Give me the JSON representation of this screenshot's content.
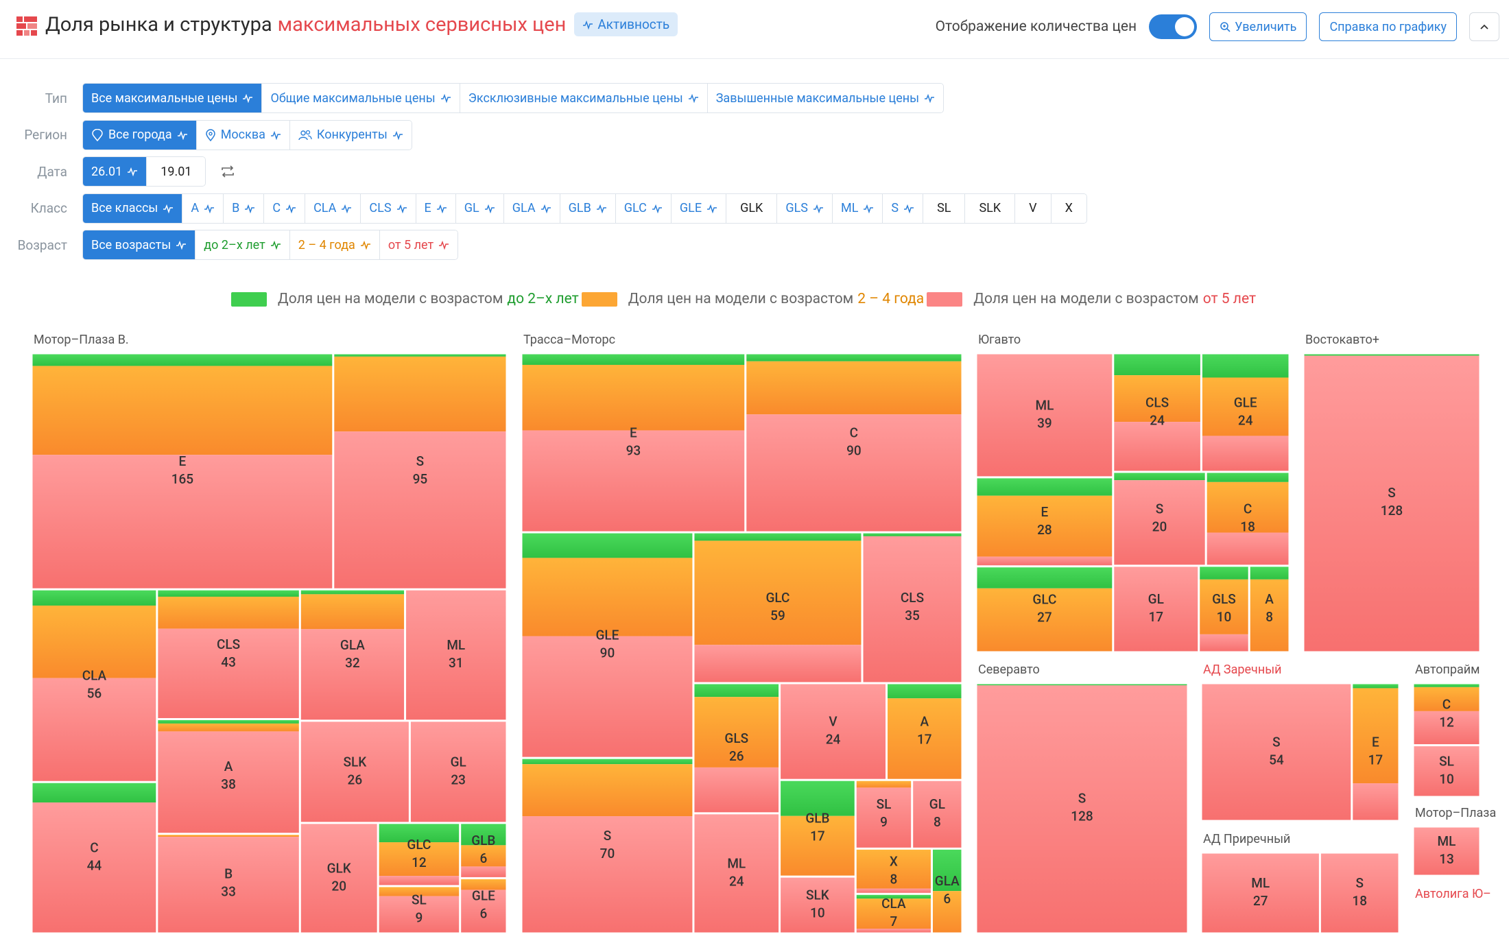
{
  "header": {
    "title": "Доля рынка и структура",
    "title_highlight": "максимальных сервисных цен",
    "badge": "Активность",
    "toggle_label": "Отображение количества цен",
    "toggle_on": true,
    "buttons": [
      "Увеличить",
      "Справка по графику"
    ]
  },
  "filters": [
    {
      "label": "Тип",
      "options": [
        {
          "text": "Все максимальные цены",
          "active": true,
          "pulse": true
        },
        {
          "text": "Общие максимальные цены",
          "pulse": true
        },
        {
          "text": "Эксклюзивные максимальные цены",
          "pulse": true
        },
        {
          "text": "Завышенные максимальные цены",
          "pulse": true
        }
      ]
    },
    {
      "label": "Регион",
      "options": [
        {
          "text": "Все города",
          "active": true,
          "pulse": true,
          "icon": "pin-heart"
        },
        {
          "text": "Москва",
          "pulse": true,
          "icon": "pin"
        },
        {
          "text": "Конкуренты",
          "pulse": true,
          "icon": "users"
        }
      ]
    },
    {
      "label": "Дата",
      "swap": true,
      "options": [
        {
          "text": "26.01",
          "active": true,
          "pulse": true
        },
        {
          "text": "19.01"
        }
      ]
    },
    {
      "label": "Класс",
      "options": [
        {
          "text": "Все классы",
          "active": true,
          "pulse": true
        },
        {
          "text": "A",
          "pulse": true
        },
        {
          "text": "B",
          "pulse": true
        },
        {
          "text": "C",
          "pulse": true
        },
        {
          "text": "CLA",
          "pulse": true
        },
        {
          "text": "CLS",
          "pulse": true
        },
        {
          "text": "E",
          "pulse": true
        },
        {
          "text": "GL",
          "pulse": true
        },
        {
          "text": "GLA",
          "pulse": true
        },
        {
          "text": "GLB",
          "pulse": true
        },
        {
          "text": "GLC",
          "pulse": true
        },
        {
          "text": "GLE",
          "pulse": true
        },
        {
          "text": "GLK"
        },
        {
          "text": "GLS",
          "pulse": true
        },
        {
          "text": "ML",
          "pulse": true
        },
        {
          "text": "S",
          "pulse": true
        },
        {
          "text": "SL"
        },
        {
          "text": "SLK"
        },
        {
          "text": "V"
        },
        {
          "text": "X"
        }
      ]
    },
    {
      "label": "Возраст",
      "options": [
        {
          "text": "Все возрасты",
          "active": true,
          "pulse": true
        },
        {
          "text": "до 2–х лет",
          "pulse": true,
          "color": "#1f9d2f"
        },
        {
          "text": "2 – 4 года",
          "pulse": true,
          "color": "#e08600"
        },
        {
          "text": "от 5 лет",
          "pulse": true,
          "color": "#e5484d"
        }
      ]
    }
  ],
  "legend": [
    {
      "prefix": "Доля цен на модели с возрастом",
      "age": "до 2–х лет",
      "color": "#3fce4f",
      "text_color": "#1f9d2f"
    },
    {
      "prefix": "Доля цен на модели с возрастом",
      "age": "2 – 4 года",
      "color": "#fca634",
      "text_color": "#e08600"
    },
    {
      "prefix": "Доля цен на модели с возрастом",
      "age": "от 5 лет",
      "color": "#fb8585",
      "text_color": "#e5484d"
    }
  ],
  "chart_data": {
    "type": "treemap",
    "groups": [
      {
        "name": "Мотор–Плаза В.",
        "items": [
          {
            "label": "E",
            "value": 165,
            "shares": [
              5,
              38,
              57
            ]
          },
          {
            "label": "S",
            "value": 95,
            "shares": [
              1,
              32,
              67
            ]
          },
          {
            "label": "CLA",
            "value": 56,
            "shares": [
              8,
              38,
              54
            ]
          },
          {
            "label": "C",
            "value": 44,
            "shares": [
              13,
              0,
              87
            ]
          },
          {
            "label": "CLS",
            "value": 43,
            "shares": [
              5,
              25,
              70
            ]
          },
          {
            "label": "A",
            "value": 38,
            "shares": [
              3,
              7,
              90
            ]
          },
          {
            "label": "B",
            "value": 33,
            "shares": [
              0,
              2,
              98
            ]
          },
          {
            "label": "GLA",
            "value": 32,
            "shares": [
              3,
              27,
              70
            ]
          },
          {
            "label": "ML",
            "value": 31,
            "shares": [
              0,
              0,
              100
            ]
          },
          {
            "label": "SLK",
            "value": 26,
            "shares": [
              0,
              0,
              100
            ]
          },
          {
            "label": "GL",
            "value": 23,
            "shares": [
              0,
              0,
              100
            ]
          },
          {
            "label": "GLK",
            "value": 20,
            "shares": [
              0,
              0,
              100
            ]
          },
          {
            "label": "GLC",
            "value": 12,
            "shares": [
              30,
              55,
              15
            ]
          },
          {
            "label": "SL",
            "value": 9,
            "shares": [
              0,
              20,
              80
            ]
          },
          {
            "label": "GLB",
            "value": 6,
            "shares": [
              40,
              40,
              20
            ]
          },
          {
            "label": "GLE",
            "value": 6,
            "shares": [
              0,
              20,
              80
            ]
          }
        ]
      },
      {
        "name": "Трасса–Моторс",
        "items": [
          {
            "label": "E",
            "value": 93,
            "shares": [
              6,
              37,
              57
            ]
          },
          {
            "label": "C",
            "value": 90,
            "shares": [
              4,
              30,
              66
            ]
          },
          {
            "label": "GLE",
            "value": 90,
            "shares": [
              11,
              35,
              54
            ]
          },
          {
            "label": "S",
            "value": 70,
            "shares": [
              3,
              30,
              67
            ]
          },
          {
            "label": "GLC",
            "value": 59,
            "shares": [
              5,
              70,
              25
            ]
          },
          {
            "label": "CLS",
            "value": 35,
            "shares": [
              2,
              0,
              98
            ]
          },
          {
            "label": "GLS",
            "value": 26,
            "shares": [
              10,
              55,
              35
            ]
          },
          {
            "label": "ML",
            "value": 24,
            "shares": [
              0,
              0,
              100
            ]
          },
          {
            "label": "V",
            "value": 24,
            "shares": [
              0,
              0,
              100
            ]
          },
          {
            "label": "A",
            "value": 17,
            "shares": [
              15,
              85,
              0
            ]
          },
          {
            "label": "GLB",
            "value": 17,
            "shares": [
              37,
              63,
              0
            ]
          },
          {
            "label": "SLK",
            "value": 10,
            "shares": [
              0,
              0,
              100
            ]
          },
          {
            "label": "SL",
            "value": 9,
            "shares": [
              0,
              10,
              90
            ]
          },
          {
            "label": "GL",
            "value": 8,
            "shares": [
              0,
              0,
              100
            ]
          },
          {
            "label": "X",
            "value": 8,
            "shares": [
              0,
              90,
              10
            ]
          },
          {
            "label": "CLA",
            "value": 7,
            "shares": [
              10,
              80,
              10
            ]
          },
          {
            "label": "GLA",
            "value": 6,
            "shares": [
              50,
              50,
              0
            ]
          }
        ]
      },
      {
        "name": "Югавто",
        "items": [
          {
            "label": "ML",
            "value": 39,
            "shares": [
              0,
              0,
              100
            ]
          },
          {
            "label": "E",
            "value": 28,
            "shares": [
              20,
              70,
              10
            ]
          },
          {
            "label": "GLC",
            "value": 27,
            "shares": [
              25,
              75,
              0
            ]
          },
          {
            "label": "CLS",
            "value": 24,
            "shares": [
              18,
              40,
              42
            ]
          },
          {
            "label": "GLE",
            "value": 24,
            "shares": [
              20,
              50,
              30
            ]
          },
          {
            "label": "S",
            "value": 20,
            "shares": [
              8,
              0,
              92
            ]
          },
          {
            "label": "C",
            "value": 18,
            "shares": [
              10,
              55,
              35
            ]
          },
          {
            "label": "GL",
            "value": 17,
            "shares": [
              0,
              0,
              100
            ]
          },
          {
            "label": "GLS",
            "value": 10,
            "shares": [
              15,
              65,
              20
            ]
          },
          {
            "label": "A",
            "value": 8,
            "shares": [
              15,
              85,
              0
            ]
          }
        ]
      },
      {
        "name": "Востокавто+",
        "items": [
          {
            "label": "S",
            "value": 128,
            "shares": [
              0.5,
              0,
              99.5
            ]
          }
        ]
      },
      {
        "name": "Северавто",
        "items": [
          {
            "label": "S",
            "value": 128,
            "shares": [
              0.5,
              0,
              99.5
            ]
          }
        ]
      },
      {
        "name": "АД Заречный",
        "highlight": true,
        "items": [
          {
            "label": "S",
            "value": 54,
            "shares": [
              0,
              0,
              100
            ]
          },
          {
            "label": "E",
            "value": 17,
            "shares": [
              3,
              70,
              27
            ]
          }
        ]
      },
      {
        "name": "Автопрайм",
        "items": [
          {
            "label": "C",
            "value": 12,
            "shares": [
              5,
              40,
              55
            ]
          },
          {
            "label": "SL",
            "value": 10,
            "shares": [
              0,
              0,
              100
            ]
          }
        ]
      },
      {
        "name": "Мотор–Плаза",
        "items": [
          {
            "label": "ML",
            "value": 13,
            "shares": [
              0,
              0,
              100
            ]
          }
        ]
      },
      {
        "name": "АД Приречный",
        "items": [
          {
            "label": "ML",
            "value": 27,
            "shares": [
              0,
              0,
              100
            ]
          },
          {
            "label": "S",
            "value": 18,
            "shares": [
              0,
              0,
              100
            ]
          }
        ]
      },
      {
        "name": "Автолига Ю–",
        "highlight": true,
        "items": []
      }
    ]
  }
}
